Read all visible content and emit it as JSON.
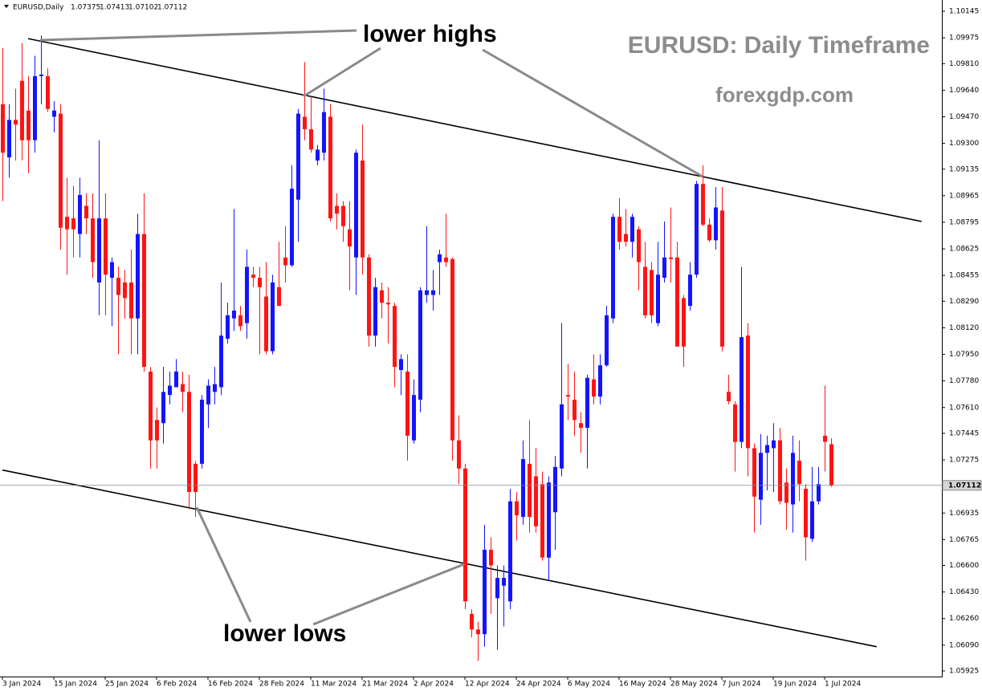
{
  "chart_data": {
    "type": "candlestick",
    "symbol": "EURUSD,Daily",
    "title": "EURUSD: Daily Timeframe",
    "subtitle": "forexgdp.com",
    "annotations": [
      "lower highs",
      "lower lows"
    ],
    "up_color": "#1414ff",
    "down_color": "#ff1414",
    "categories": [
      "3 Jan 2024",
      null,
      null,
      null,
      null,
      null,
      null,
      null,
      "15 Jan 2024",
      null,
      null,
      null,
      null,
      null,
      null,
      null,
      "25 Jan 2024",
      null,
      null,
      null,
      null,
      null,
      null,
      null,
      "6 Feb 2024",
      null,
      null,
      null,
      null,
      null,
      null,
      null,
      "16 Feb 2024",
      null,
      null,
      null,
      null,
      null,
      null,
      null,
      "28 Feb 2024",
      null,
      null,
      null,
      null,
      null,
      null,
      null,
      "11 Mar 2024",
      null,
      null,
      null,
      null,
      null,
      null,
      null,
      "21 Mar 2024",
      null,
      null,
      null,
      null,
      null,
      null,
      null,
      "2 Apr 2024",
      null,
      null,
      null,
      null,
      null,
      null,
      null,
      "12 Apr 2024",
      null,
      null,
      null,
      null,
      null,
      null,
      null,
      "24 Apr 2024",
      null,
      null,
      null,
      null,
      null,
      null,
      null,
      "6 May 2024",
      null,
      null,
      null,
      null,
      null,
      null,
      null,
      "16 May 2024",
      null,
      null,
      null,
      null,
      null,
      null,
      null,
      "28 May 2024",
      null,
      null,
      null,
      null,
      null,
      null,
      null,
      "7 Jun 2024",
      null,
      null,
      null,
      null,
      null,
      null,
      null,
      "19 Jun 2024",
      null,
      null,
      null,
      null,
      null,
      null,
      null,
      "1 Jul 2024",
      null
    ],
    "open": [
      1.0955,
      1.0921,
      1.0945,
      1.097,
      1.0951,
      1.0932,
      1.0973,
      1.0973,
      1.0947,
      1.0949,
      1.0883,
      1.0882,
      1.0872,
      1.089,
      1.0882,
      1.0841,
      1.0882,
      1.0844,
      1.0844,
      1.0841,
      1.0841,
      1.0818,
      1.0872,
      1.0784,
      1.0753,
      1.0751,
      1.0769,
      1.0774,
      1.0776,
      1.0771,
      1.0725,
      1.0725,
      1.0763,
      1.0771,
      1.0774,
      1.0805,
      1.0818,
      1.082,
      1.0815,
      1.0846,
      1.0844,
      1.0832,
      1.0797,
      1.0838,
      1.0857,
      1.0852,
      1.0894,
      1.0947,
      1.0939,
      1.0919,
      1.0924,
      1.0947,
      1.089,
      1.089,
      1.0875,
      1.0857,
      1.0919,
      1.0857,
      1.0807,
      1.0836,
      1.0828,
      1.0826,
      1.0785,
      1.0784,
      1.074,
      1.0766,
      1.0833,
      1.0833,
      1.0854,
      1.0857,
      1.0856,
      1.074,
      1.0722,
      1.0629,
      1.0619,
      1.0616,
      1.067,
      1.0639,
      1.0647,
      1.0637,
      1.0701,
      1.0691,
      1.0725,
      1.0717,
      1.0712,
      1.0665,
      1.0694,
      1.0722,
      1.0769,
      1.0766,
      1.0751,
      1.0748,
      1.0779,
      1.0768,
      1.0788,
      1.0818,
      1.0883,
      1.0872,
      1.0867,
      1.0875,
      1.0851,
      1.0849,
      1.0815,
      1.0844,
      1.0857,
      1.0857,
      1.0831,
      1.0826,
      1.0846,
      1.0904,
      1.0878,
      1.0868,
      1.0887,
      1.0771,
      1.0763,
      1.0739,
      1.0807,
      1.0735,
      1.0702,
      1.0732,
      1.0735,
      1.074,
      1.0713,
      1.0699,
      1.0727,
      1.0709,
      1.0677,
      1.0701,
      1.0743,
      1.07375
    ],
    "high": [
      1.0991,
      1.0955,
      1.0965,
      1.0994,
      1.0973,
      1.0986,
      1.0999,
      1.0978,
      1.0957,
      1.0955,
      1.0908,
      1.0903,
      1.0908,
      1.0898,
      1.0898,
      1.0932,
      1.0898,
      1.0857,
      1.0851,
      1.0849,
      1.0862,
      1.0885,
      1.0898,
      1.0787,
      1.0761,
      1.0787,
      1.0784,
      1.0792,
      1.0784,
      1.0782,
      1.0727,
      1.0769,
      1.0779,
      1.0787,
      1.0841,
      1.0828,
      1.0888,
      1.0826,
      1.0862,
      1.0851,
      1.0851,
      1.0854,
      1.0846,
      1.0867,
      1.0877,
      1.0916,
      1.0952,
      1.0982,
      1.096,
      1.0929,
      1.0965,
      1.0955,
      1.0898,
      1.0893,
      1.0893,
      1.0926,
      1.0942,
      1.0859,
      1.0844,
      1.0841,
      1.0838,
      1.0828,
      1.0795,
      1.0795,
      1.0779,
      1.0838,
      1.0877,
      1.0849,
      1.0862,
      1.0885,
      1.0857,
      1.0756,
      1.0725,
      1.0632,
      1.0624,
      1.0686,
      1.0678,
      1.066,
      1.066,
      1.0709,
      1.0707,
      1.074,
      1.0753,
      1.0735,
      1.072,
      1.0717,
      1.073,
      1.0815,
      1.0789,
      1.0784,
      1.0758,
      1.0782,
      1.0795,
      1.0795,
      1.0826,
      1.0885,
      1.0895,
      1.0888,
      1.0885,
      1.0877,
      1.0867,
      1.0854,
      1.0867,
      1.088,
      1.0889,
      1.0867,
      1.0833,
      1.0854,
      1.0906,
      1.0916,
      1.0882,
      1.0902,
      1.0902,
      1.0782,
      1.0765,
      1.0851,
      1.0815,
      1.0738,
      1.0744,
      1.0743,
      1.0751,
      1.0748,
      1.0722,
      1.0743,
      1.074,
      1.0712,
      1.0723,
      1.0723,
      1.0775,
      1.07413
    ],
    "low": [
      1.0893,
      1.0908,
      1.0919,
      1.0919,
      1.0911,
      1.0924,
      1.0955,
      1.095,
      1.0937,
      1.0862,
      1.0846,
      1.0857,
      1.0857,
      1.0872,
      1.0844,
      1.082,
      1.082,
      1.0813,
      1.0795,
      1.0818,
      1.0795,
      1.0795,
      1.0784,
      1.0722,
      1.0722,
      1.0738,
      1.0763,
      1.0774,
      1.0758,
      1.0696,
      1.0691,
      1.0722,
      1.0748,
      1.0763,
      1.0769,
      1.0802,
      1.081,
      1.081,
      1.0805,
      1.0838,
      1.0795,
      1.0795,
      1.0795,
      1.0826,
      1.0841,
      1.0851,
      1.0867,
      1.0932,
      1.0924,
      1.0916,
      1.0919,
      1.088,
      1.0875,
      1.0867,
      1.0836,
      1.0833,
      1.0846,
      1.08,
      1.08,
      1.0818,
      1.0802,
      1.0774,
      1.0769,
      1.0727,
      1.0738,
      1.0758,
      1.0828,
      1.0823,
      1.0833,
      1.0851,
      1.0727,
      1.0712,
      1.0632,
      1.0614,
      1.0599,
      1.0608,
      1.0629,
      1.0606,
      1.0621,
      1.0632,
      1.0676,
      1.0686,
      1.0681,
      1.0681,
      1.0663,
      1.065,
      1.067,
      1.0717,
      1.0753,
      1.0743,
      1.0732,
      1.0722,
      1.0763,
      1.0763,
      1.0787,
      1.0815,
      1.0862,
      1.0864,
      1.0857,
      1.0836,
      1.0818,
      1.0815,
      1.0813,
      1.0841,
      1.0841,
      1.08,
      1.0787,
      1.0823,
      1.0844,
      1.0877,
      1.0867,
      1.0862,
      1.0797,
      1.0763,
      1.072,
      1.0735,
      1.0717,
      1.0681,
      1.0686,
      1.0708,
      1.0707,
      1.0699,
      1.0683,
      1.0681,
      1.0701,
      1.0663,
      1.0675,
      1.0699,
      1.072,
      1.07102
    ],
    "close": [
      1.0924,
      1.0945,
      1.0942,
      1.0932,
      1.0932,
      1.0973,
      1.0974,
      1.0952,
      1.0951,
      1.0876,
      1.0875,
      1.0875,
      1.0897,
      1.0882,
      1.0854,
      1.0882,
      1.0846,
      1.0854,
      1.0833,
      1.0831,
      1.0818,
      1.0872,
      1.0787,
      1.074,
      1.074,
      1.0771,
      1.0775,
      1.0784,
      1.0771,
      1.0707,
      1.0707,
      1.0766,
      1.0775,
      1.0776,
      1.0807,
      1.082,
      1.0823,
      1.0813,
      1.0851,
      1.0844,
      1.0838,
      1.0797,
      1.0841,
      1.0826,
      1.0852,
      1.0901,
      1.0949,
      1.0939,
      1.0926,
      1.0926,
      1.095,
      1.0882,
      1.0885,
      1.0877,
      1.0864,
      1.0924,
      1.0857,
      1.0807,
      1.0838,
      1.0828,
      1.0827,
      1.0787,
      1.0792,
      1.0743,
      1.0769,
      1.0836,
      1.0836,
      1.0836,
      1.0859,
      1.0854,
      1.074,
      1.0722,
      1.0637,
      1.0619,
      1.0616,
      1.067,
      1.066,
      1.0652,
      1.0652,
      1.0701,
      1.0692,
      1.0728,
      1.0691,
      1.0685,
      1.0665,
      1.0713,
      1.0723,
      1.0763,
      1.0768,
      1.0753,
      1.0748,
      1.078,
      1.0768,
      1.0788,
      1.082,
      1.0883,
      1.0867,
      1.0867,
      1.0883,
      1.0854,
      1.082,
      1.082,
      1.0846,
      1.0857,
      1.0856,
      1.08,
      1.08,
      1.0846,
      1.0904,
      1.0878,
      1.0868,
      1.0889,
      1.08,
      1.0765,
      1.0739,
      1.0806,
      1.0735,
      1.0704,
      1.0732,
      1.0737,
      1.074,
      1.0701,
      1.07,
      1.0732,
      1.0712,
      1.0678,
      1.0701,
      1.0712,
      1.0739,
      1.07112
    ],
    "ylim": [
      1.05889,
      1.10217
    ],
    "yticks": [
      1.10145,
      1.09975,
      {
        "value": 1.0981,
        "label": "1.09810"
      },
      {
        "value": 1.0964,
        "label": "1.09640"
      },
      {
        "value": 1.0947,
        "label": "1.09470"
      },
      {
        "value": 1.093,
        "label": "1.09300"
      },
      1.09135,
      1.08965,
      1.08795,
      1.08625,
      1.08455,
      {
        "value": 1.0829,
        "label": "1.08290"
      },
      {
        "value": 1.0812,
        "label": "1.08120"
      },
      {
        "value": 1.0795,
        "label": "1.07950"
      },
      {
        "value": 1.0778,
        "label": "1.07780"
      },
      {
        "value": 1.0761,
        "label": "1.07610"
      },
      1.07445,
      1.07275,
      1.06935,
      1.06765,
      {
        "value": 1.066,
        "label": "1.06600"
      },
      {
        "value": 1.0643,
        "label": "1.06430"
      },
      {
        "value": 1.0626,
        "label": "1.06260"
      },
      {
        "value": 1.0609,
        "label": "1.06090"
      },
      1.05925
    ],
    "trendlines": [
      {
        "x": [
          4,
          143.1
        ],
        "y": [
          1.0997,
          1.088
        ]
      },
      {
        "x": [
          0,
          136.1
        ],
        "y": [
          1.0721,
          1.0608
        ]
      }
    ],
    "grid": false
  }
}
